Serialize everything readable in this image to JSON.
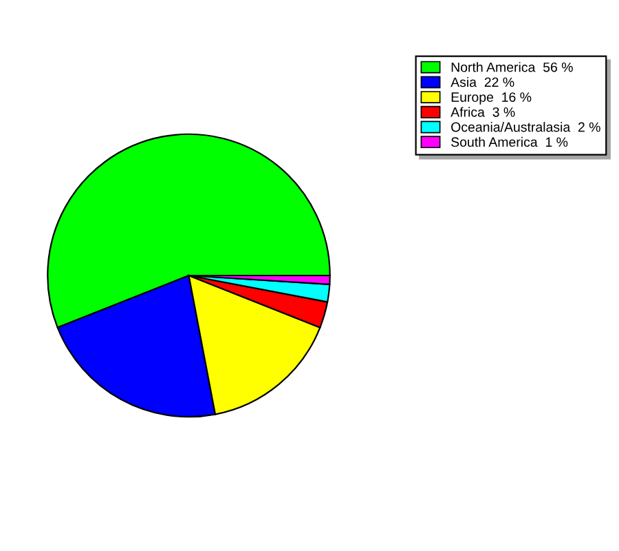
{
  "chart_data": {
    "type": "pie",
    "categories": [
      "North America",
      "Asia",
      "Europe",
      "Africa",
      "Oceania/Australasia",
      "South America"
    ],
    "values": [
      56,
      22,
      16,
      3,
      2,
      1
    ],
    "value_labels": [
      "56 %",
      "22 %",
      "16 %",
      "3 %",
      "2 %",
      "1 %"
    ],
    "colors": [
      "#00ff00",
      "#0000ff",
      "#ffff00",
      "#ff0000",
      "#00ffff",
      "#ff00ff"
    ],
    "legend": "top right"
  }
}
